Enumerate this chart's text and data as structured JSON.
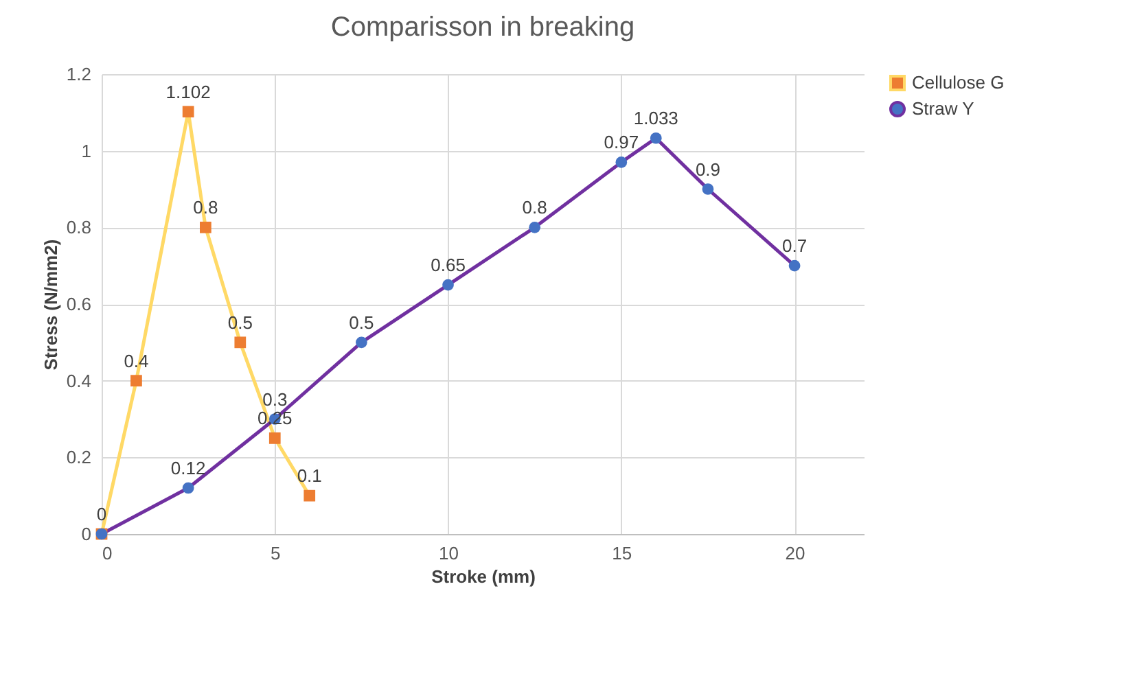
{
  "chart_data": {
    "type": "line",
    "title": "Comparisson in breaking",
    "xlabel": "Stroke (mm)",
    "ylabel": "Stress (N/mm2)",
    "xlim": [
      0,
      22
    ],
    "xticks": [
      0,
      5,
      10,
      15,
      20
    ],
    "ylim": [
      0,
      1.2
    ],
    "yticks": [
      0,
      0.2,
      0.4,
      0.6,
      0.8,
      1,
      1.2
    ],
    "grid": true,
    "legend": "right",
    "series": [
      {
        "name": "Cellulose G",
        "color": "#ffd966",
        "colors": [
          "#ed7d31",
          "#ed7d31",
          "#ed7d31",
          "#ed7d31",
          "#ed7d31",
          "#ed7d31",
          "#ed7d31"
        ],
        "marker": "square",
        "line_style": "solid",
        "x": [
          0,
          1,
          2.5,
          3,
          4,
          5,
          6
        ],
        "values": [
          0,
          0.4,
          1.102,
          0.8,
          0.5,
          0.25,
          0.1
        ],
        "value_labels": [
          null,
          "0.4",
          "1.102",
          "0.8",
          "0.5",
          "0.25",
          "0.1"
        ]
      },
      {
        "name": "Straw Y",
        "color": "#7030a0",
        "colors": [
          "#4472c4",
          "#4472c4",
          "#4472c4",
          "#4472c4",
          "#4472c4",
          "#4472c4",
          "#4472c4",
          "#4472c4",
          "#4472c4",
          "#4472c4"
        ],
        "marker": "circle",
        "line_style": "solid",
        "x": [
          0,
          2.5,
          5,
          7.5,
          10,
          12.5,
          15,
          16,
          17.5,
          20
        ],
        "values": [
          0,
          0.12,
          0.3,
          0.5,
          0.65,
          0.8,
          0.97,
          1.033,
          0.9,
          0.7
        ],
        "value_labels": [
          "0",
          "0.12",
          "0.3",
          "0.5",
          "0.65",
          "0.8",
          "0.97",
          "1.033",
          "0.9",
          "0.7"
        ]
      }
    ]
  }
}
